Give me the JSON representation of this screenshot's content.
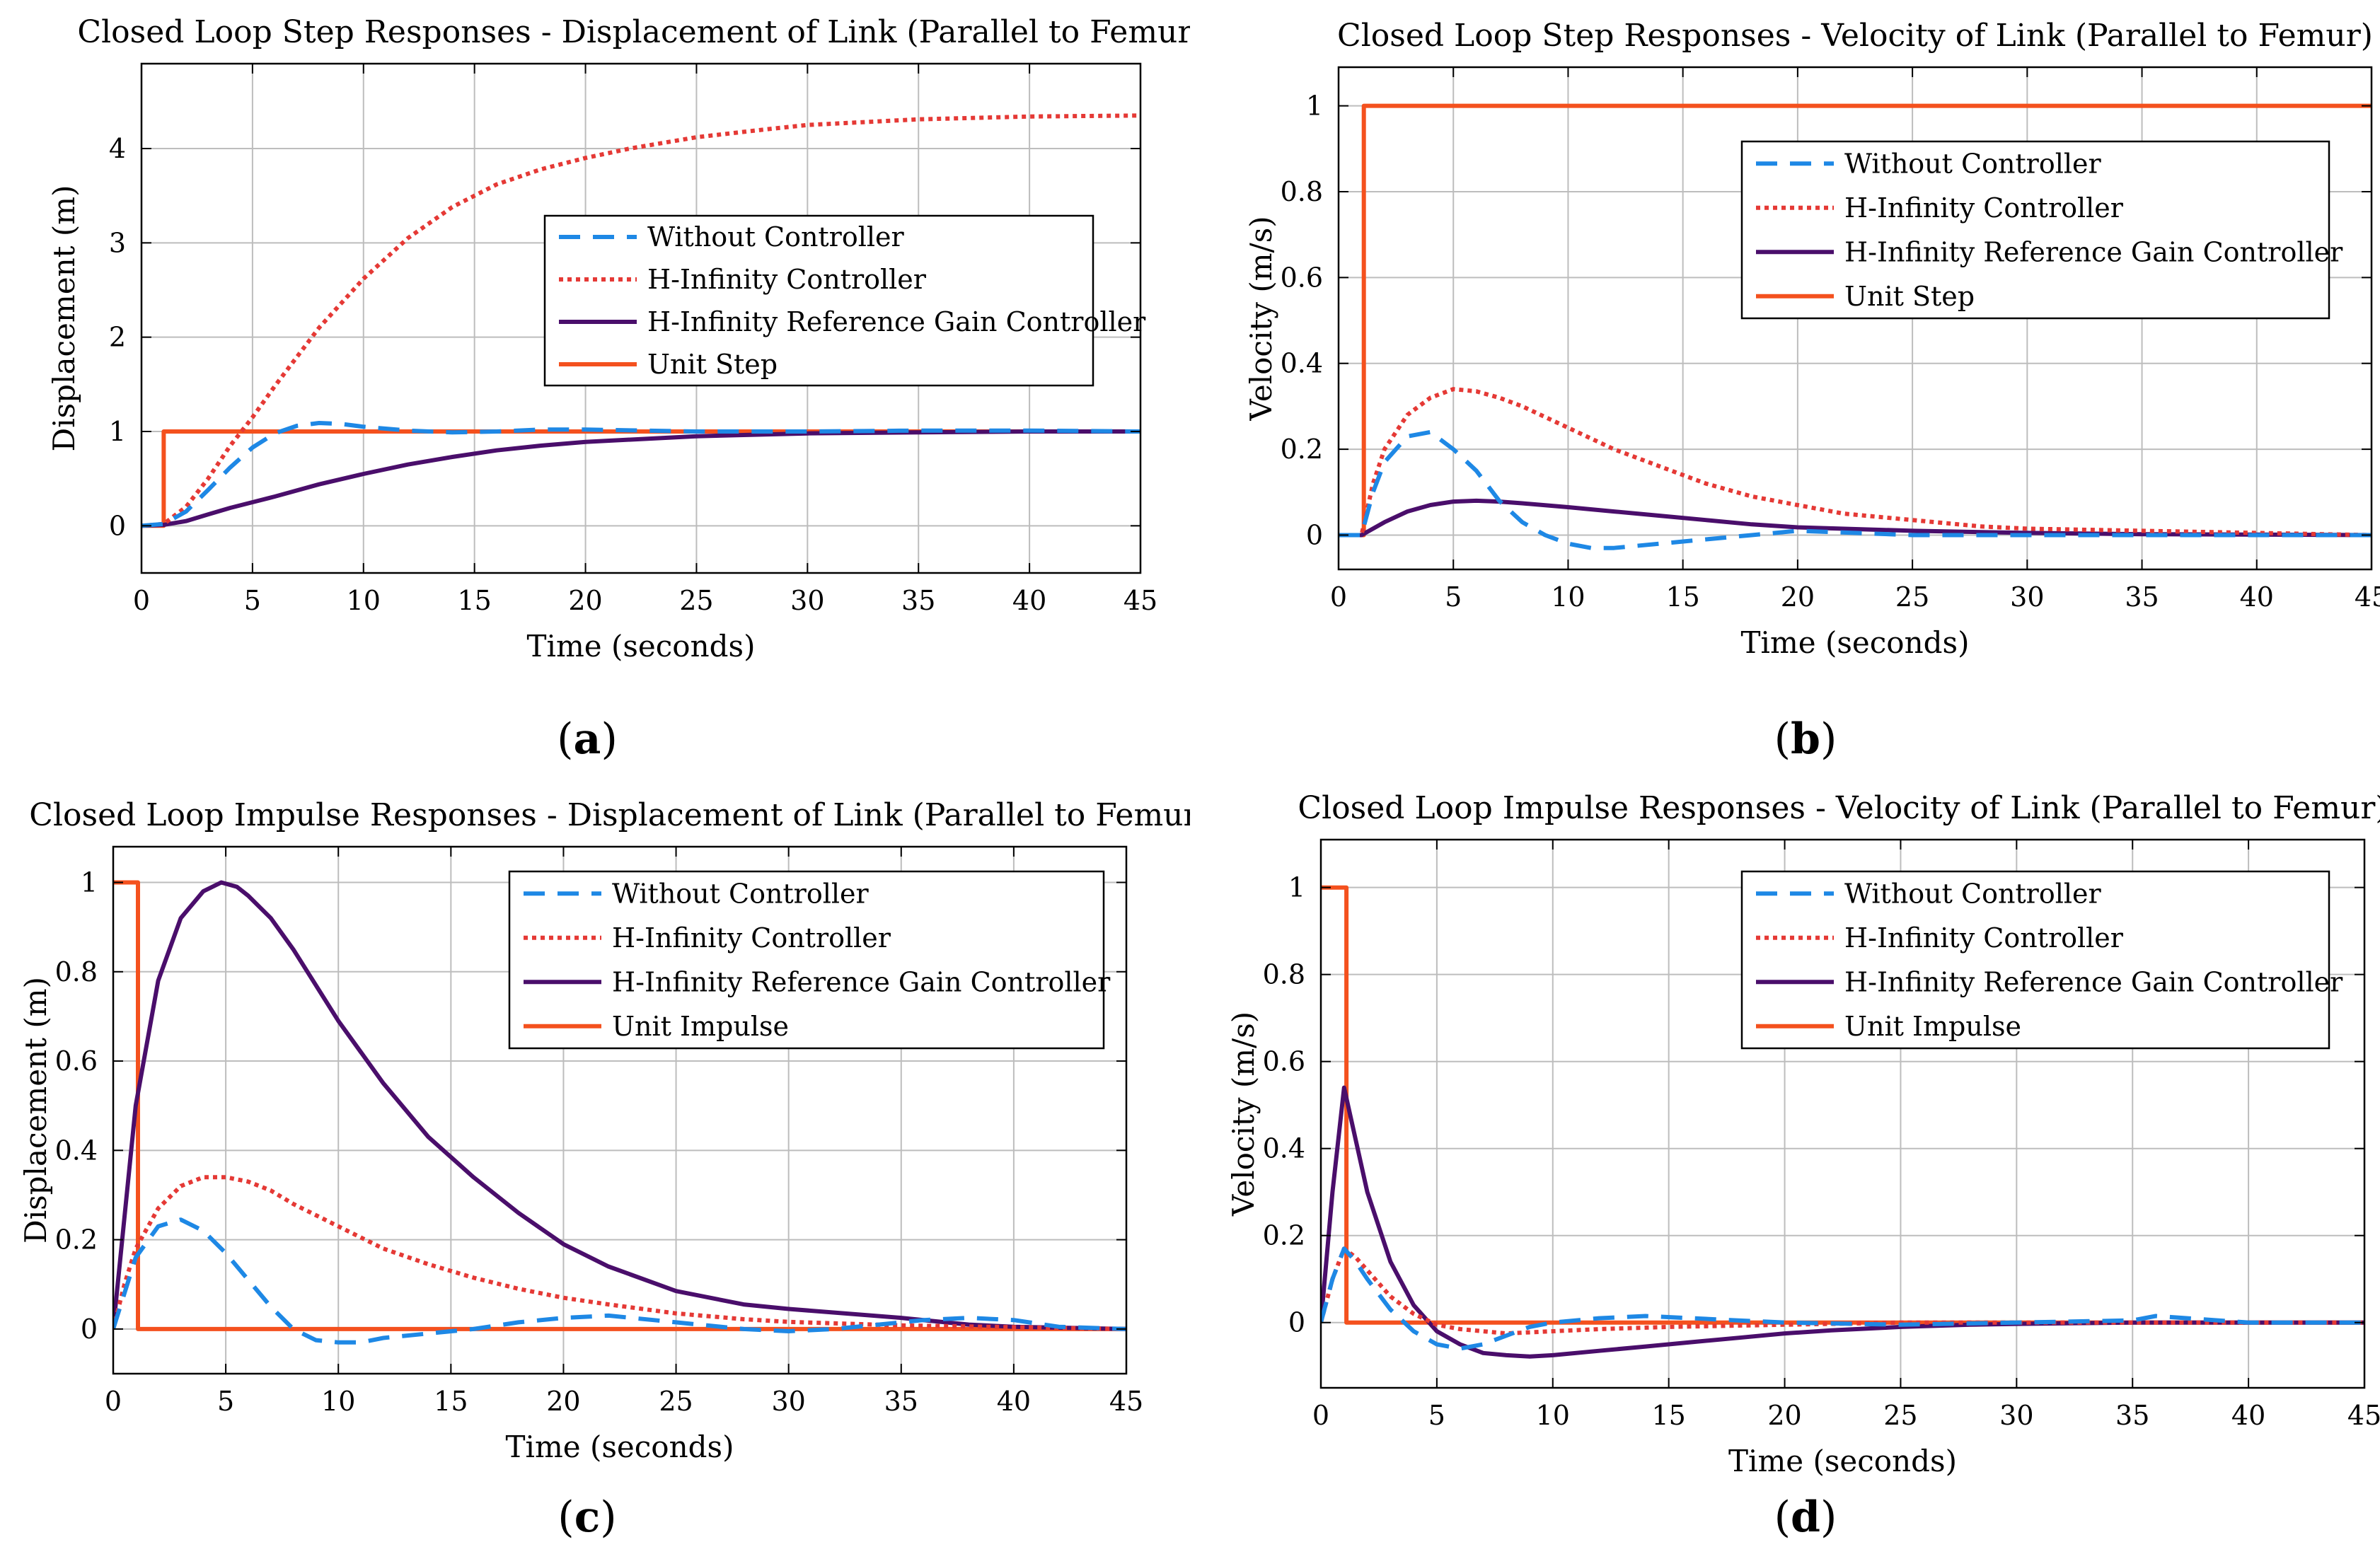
{
  "colors": {
    "without": "#1e88e5",
    "hinf": "#e53935",
    "hinf_ref": "#4a0e6b",
    "input": "#f4511e",
    "grid": "#bdbdbd",
    "axis": "#000000"
  },
  "chart_data": [
    {
      "id": "a",
      "type": "line",
      "panel_label": "a",
      "title": "Closed Loop Step Responses - Displacement of Link (Parallel to Femur)",
      "xlabel": "Time (seconds)",
      "ylabel": "Displacement (m)",
      "xlim": [
        0,
        45
      ],
      "ylim": [
        -0.5,
        4.9
      ],
      "xticks": [
        0,
        5,
        10,
        15,
        20,
        25,
        30,
        35,
        40,
        45
      ],
      "yticks": [
        0,
        1,
        2,
        3,
        4
      ],
      "ytick_labels": [
        "0",
        "1",
        "2",
        "3",
        "4"
      ],
      "grid": true,
      "legend_position": "center-right",
      "series": [
        {
          "name": "Without Controller",
          "style": "dashed",
          "color_key": "without",
          "x": [
            0,
            1,
            2,
            3,
            4,
            5,
            6,
            7,
            8,
            9,
            10,
            12,
            14,
            16,
            18,
            20,
            25,
            30,
            35,
            40,
            45
          ],
          "y": [
            0,
            0.02,
            0.15,
            0.38,
            0.62,
            0.83,
            0.98,
            1.06,
            1.09,
            1.08,
            1.05,
            1.01,
            0.99,
            1.0,
            1.02,
            1.02,
            1.0,
            1.0,
            1.01,
            1.01,
            1.0
          ]
        },
        {
          "name": "H-Infinity Controller",
          "style": "dotted",
          "color_key": "hinf",
          "x": [
            0,
            1,
            2,
            3,
            4,
            5,
            6,
            8,
            10,
            12,
            14,
            16,
            18,
            20,
            22,
            25,
            28,
            30,
            35,
            40,
            45
          ],
          "y": [
            0,
            0.02,
            0.2,
            0.5,
            0.85,
            1.15,
            1.48,
            2.1,
            2.62,
            3.05,
            3.38,
            3.62,
            3.78,
            3.9,
            4.0,
            4.12,
            4.2,
            4.25,
            4.31,
            4.34,
            4.35
          ]
        },
        {
          "name": "H-Infinity Reference Gain Controller",
          "style": "solid",
          "color_key": "hinf_ref",
          "x": [
            0,
            1,
            2,
            3,
            4,
            5,
            6,
            8,
            10,
            12,
            14,
            16,
            18,
            20,
            25,
            30,
            35,
            40,
            45
          ],
          "y": [
            0,
            0.01,
            0.05,
            0.12,
            0.19,
            0.25,
            0.31,
            0.44,
            0.55,
            0.65,
            0.73,
            0.8,
            0.85,
            0.89,
            0.95,
            0.98,
            0.99,
            1.0,
            1.0
          ]
        },
        {
          "name": "Unit Step",
          "style": "solid",
          "color_key": "input",
          "x": [
            0,
            1,
            1,
            45
          ],
          "y": [
            0,
            0,
            1,
            1
          ]
        }
      ]
    },
    {
      "id": "b",
      "type": "line",
      "panel_label": "b",
      "title": "Closed Loop Step Responses - Velocity of Link (Parallel to Femur)",
      "xlabel": "Time (seconds)",
      "ylabel": "Velocity (m/s)",
      "xlim": [
        0,
        45
      ],
      "ylim": [
        -0.08,
        1.09
      ],
      "xticks": [
        0,
        5,
        10,
        15,
        20,
        25,
        30,
        35,
        40,
        45
      ],
      "yticks": [
        0,
        0.2,
        0.4,
        0.6,
        0.8,
        1
      ],
      "ytick_labels": [
        "0",
        "0.2",
        "0.4",
        "0.6",
        "0.8",
        "1"
      ],
      "grid": true,
      "legend_position": "top-right",
      "series": [
        {
          "name": "Without Controller",
          "style": "dashed",
          "color_key": "without",
          "x": [
            0,
            1,
            1.5,
            2,
            3,
            4,
            5,
            6,
            7,
            8,
            9,
            10,
            11,
            12,
            14,
            16,
            18,
            20,
            25,
            30,
            35,
            40,
            45
          ],
          "y": [
            0,
            0,
            0.1,
            0.17,
            0.23,
            0.24,
            0.2,
            0.15,
            0.08,
            0.03,
            0.0,
            -0.02,
            -0.03,
            -0.03,
            -0.02,
            -0.01,
            0.0,
            0.01,
            0.0,
            0.0,
            0.0,
            0.0,
            0.0
          ]
        },
        {
          "name": "H-Infinity Controller",
          "style": "dotted",
          "color_key": "hinf",
          "x": [
            0,
            1,
            1.5,
            2,
            3,
            4,
            5,
            6,
            7,
            8,
            10,
            12,
            14,
            16,
            18,
            20,
            22,
            25,
            28,
            30,
            35,
            40,
            45
          ],
          "y": [
            0,
            0,
            0.12,
            0.2,
            0.28,
            0.32,
            0.34,
            0.335,
            0.32,
            0.3,
            0.25,
            0.2,
            0.16,
            0.12,
            0.09,
            0.07,
            0.05,
            0.035,
            0.02,
            0.015,
            0.01,
            0.005,
            0.0
          ]
        },
        {
          "name": "H-Infinity Reference Gain Controller",
          "style": "solid",
          "color_key": "hinf_ref",
          "x": [
            0,
            1,
            2,
            3,
            4,
            5,
            6,
            7,
            8,
            10,
            12,
            14,
            16,
            18,
            20,
            25,
            30,
            35,
            40,
            45
          ],
          "y": [
            0,
            0,
            0.03,
            0.055,
            0.07,
            0.078,
            0.08,
            0.078,
            0.074,
            0.065,
            0.055,
            0.045,
            0.035,
            0.025,
            0.018,
            0.01,
            0.005,
            0.002,
            0.001,
            0.0
          ]
        },
        {
          "name": "Unit Step",
          "style": "solid",
          "color_key": "input",
          "x": [
            0,
            1.1,
            1.1,
            45
          ],
          "y": [
            0,
            0,
            1,
            1
          ]
        }
      ]
    },
    {
      "id": "c",
      "type": "line",
      "panel_label": "c",
      "title": "Closed Loop Impulse Responses - Displacement of Link (Parallel to Femur)",
      "xlabel": "Time (seconds)",
      "ylabel": "Displacement (m)",
      "xlim": [
        0,
        45
      ],
      "ylim": [
        -0.1,
        1.08
      ],
      "xticks": [
        0,
        5,
        10,
        15,
        20,
        25,
        30,
        35,
        40,
        45
      ],
      "yticks": [
        0,
        0.2,
        0.4,
        0.6,
        0.8,
        1
      ],
      "ytick_labels": [
        "0",
        "0.2",
        "0.4",
        "0.6",
        "0.8",
        "1"
      ],
      "grid": true,
      "legend_position": "top-right",
      "series": [
        {
          "name": "Without Controller",
          "style": "dashed",
          "color_key": "without",
          "x": [
            0,
            0.5,
            1,
            2,
            3,
            4,
            5,
            6,
            7,
            8,
            9,
            10,
            11,
            12,
            14,
            16,
            18,
            20,
            22,
            24,
            26,
            28,
            30,
            32,
            34,
            36,
            38,
            40,
            42,
            45
          ],
          "y": [
            0,
            0.08,
            0.16,
            0.23,
            0.245,
            0.22,
            0.17,
            0.11,
            0.05,
            0.0,
            -0.025,
            -0.03,
            -0.03,
            -0.02,
            -0.01,
            0.0,
            0.015,
            0.025,
            0.03,
            0.02,
            0.01,
            0.0,
            -0.005,
            0.0,
            0.01,
            0.02,
            0.025,
            0.02,
            0.005,
            0.0
          ]
        },
        {
          "name": "H-Infinity Controller",
          "style": "dotted",
          "color_key": "hinf",
          "x": [
            0,
            0.5,
            1,
            2,
            3,
            4,
            5,
            6,
            7,
            8,
            10,
            12,
            14,
            16,
            18,
            20,
            22,
            25,
            28,
            30,
            35,
            40,
            45
          ],
          "y": [
            0,
            0.1,
            0.18,
            0.27,
            0.32,
            0.34,
            0.34,
            0.33,
            0.31,
            0.28,
            0.23,
            0.18,
            0.145,
            0.115,
            0.09,
            0.07,
            0.055,
            0.035,
            0.022,
            0.016,
            0.008,
            0.004,
            0.0
          ]
        },
        {
          "name": "H-Infinity Reference Gain Controller",
          "style": "solid",
          "color_key": "hinf_ref",
          "x": [
            0,
            0.5,
            1,
            2,
            3,
            4,
            4.8,
            5.5,
            6,
            7,
            8,
            9,
            10,
            12,
            14,
            16,
            18,
            20,
            22,
            25,
            28,
            30,
            35,
            38,
            40,
            45
          ],
          "y": [
            0,
            0.25,
            0.5,
            0.78,
            0.92,
            0.98,
            1.0,
            0.99,
            0.97,
            0.92,
            0.85,
            0.77,
            0.69,
            0.55,
            0.43,
            0.34,
            0.26,
            0.19,
            0.14,
            0.085,
            0.055,
            0.045,
            0.025,
            0.01,
            0.005,
            0.0
          ]
        },
        {
          "name": "Unit Impulse",
          "style": "solid",
          "color_key": "input",
          "x": [
            0,
            1.1,
            1.1,
            45
          ],
          "y": [
            1,
            1,
            0,
            0
          ]
        }
      ]
    },
    {
      "id": "d",
      "type": "line",
      "panel_label": "d",
      "title": "Closed Loop Impulse Responses - Velocity of Link (Parallel to Femur)",
      "xlabel": "Time (seconds)",
      "ylabel": "Velocity (m/s)",
      "xlim": [
        0,
        45
      ],
      "ylim": [
        -0.15,
        1.11
      ],
      "xticks": [
        0,
        5,
        10,
        15,
        20,
        25,
        30,
        35,
        40,
        45
      ],
      "yticks": [
        0,
        0.2,
        0.4,
        0.6,
        0.8,
        1
      ],
      "ytick_labels": [
        "0",
        "0.2",
        "0.4",
        "0.6",
        "0.8",
        "1"
      ],
      "grid": true,
      "legend_position": "top-right",
      "series": [
        {
          "name": "Without Controller",
          "style": "dashed",
          "color_key": "without",
          "x": [
            0,
            0.5,
            1,
            1.5,
            2,
            3,
            4,
            5,
            6,
            7,
            8,
            9,
            10,
            12,
            14,
            16,
            18,
            20,
            25,
            30,
            35,
            36,
            40,
            45
          ],
          "y": [
            0,
            0.1,
            0.17,
            0.14,
            0.1,
            0.03,
            -0.02,
            -0.05,
            -0.06,
            -0.05,
            -0.03,
            -0.01,
            0.0,
            0.01,
            0.015,
            0.01,
            0.005,
            0.0,
            -0.005,
            0.0,
            0.005,
            0.015,
            0.0,
            0.0
          ]
        },
        {
          "name": "H-Infinity Controller",
          "style": "dotted",
          "color_key": "hinf",
          "x": [
            0,
            0.5,
            1,
            1.5,
            2,
            3,
            4,
            5,
            6,
            8,
            10,
            12,
            15,
            20,
            25,
            30,
            35,
            40,
            45
          ],
          "y": [
            0,
            0.1,
            0.17,
            0.15,
            0.12,
            0.06,
            0.02,
            -0.005,
            -0.015,
            -0.025,
            -0.02,
            -0.015,
            -0.01,
            -0.005,
            0.0,
            0.0,
            0.0,
            0.0,
            0.0
          ]
        },
        {
          "name": "H-Infinity Reference Gain Controller",
          "style": "solid",
          "color_key": "hinf_ref",
          "x": [
            0,
            0.5,
            1,
            1.5,
            2,
            3,
            4,
            5,
            6,
            7,
            8,
            9,
            10,
            12,
            14,
            16,
            18,
            20,
            22,
            25,
            28,
            30,
            35,
            40,
            45
          ],
          "y": [
            0,
            0.3,
            0.54,
            0.42,
            0.3,
            0.14,
            0.04,
            -0.02,
            -0.05,
            -0.07,
            -0.075,
            -0.078,
            -0.075,
            -0.065,
            -0.055,
            -0.045,
            -0.035,
            -0.025,
            -0.018,
            -0.01,
            -0.005,
            -0.003,
            0.0,
            0.0,
            0.0
          ]
        },
        {
          "name": "Unit Impulse",
          "style": "solid",
          "color_key": "input",
          "x": [
            0,
            1.1,
            1.1,
            45
          ],
          "y": [
            1,
            1,
            0,
            0
          ]
        }
      ]
    }
  ]
}
